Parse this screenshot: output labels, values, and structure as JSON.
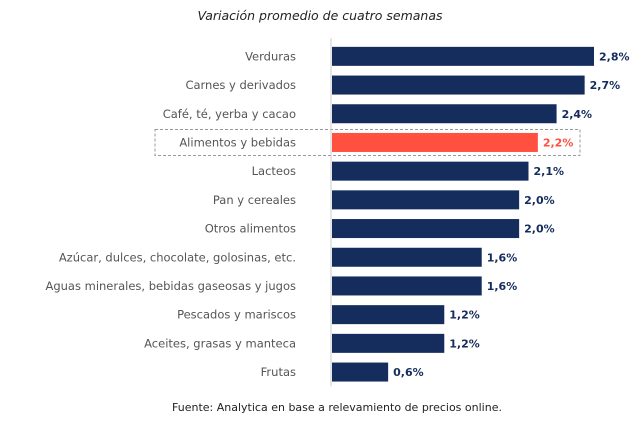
{
  "chart_data": {
    "type": "bar",
    "orientation": "horizontal",
    "title": "Variación promedio de cuatro semanas",
    "source": "Fuente: Analytica en base a relevamiento de precios online.",
    "xlabel": "",
    "ylabel": "",
    "xlim": [
      0,
      2.8
    ],
    "grid": false,
    "highlight_category": "Alimentos y bebidas",
    "colors": {
      "default": "#142d5c",
      "highlight": "#ff5040",
      "axis": "#cccccc",
      "highlight_box": "#999999"
    },
    "categories": [
      "Verduras",
      "Carnes y derivados",
      "Café, té, yerba y cacao",
      "Alimentos y bebidas",
      "Lacteos",
      "Pan y cereales",
      "Otros alimentos",
      "Azúcar, dulces, chocolate, golosinas, etc.",
      "Aguas minerales, bebidas gaseosas y jugos",
      "Pescados y mariscos",
      "Aceites, grasas y manteca",
      "Frutas"
    ],
    "values": [
      2.8,
      2.7,
      2.4,
      2.2,
      2.1,
      2.0,
      2.0,
      1.6,
      1.6,
      1.2,
      1.2,
      0.6
    ],
    "value_labels": [
      "2,8%",
      "2,7%",
      "2,4%",
      "2,2%",
      "2,1%",
      "2,0%",
      "2,0%",
      "1,6%",
      "1,6%",
      "1,2%",
      "1,2%",
      "0,6%"
    ]
  }
}
